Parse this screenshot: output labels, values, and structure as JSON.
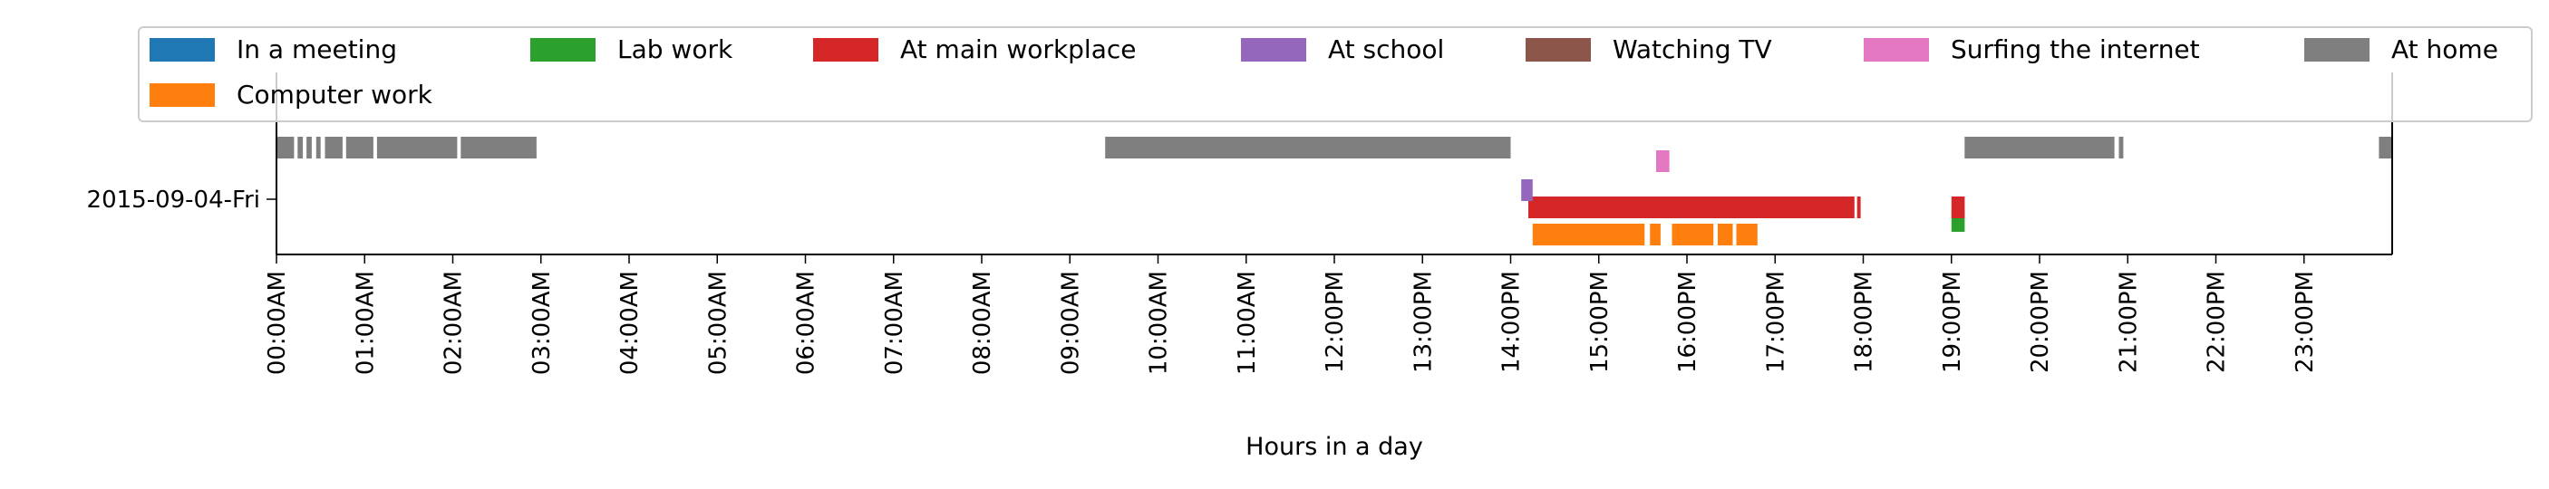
{
  "chart_data": {
    "type": "timeline",
    "title": "",
    "xlabel": "Hours in a day",
    "ylabel": "",
    "day_label": "2015-09-04-Fri",
    "xlim": [
      0,
      24
    ],
    "x_ticks": [
      {
        "hour": 0,
        "label": "00:00AM"
      },
      {
        "hour": 1,
        "label": "01:00AM"
      },
      {
        "hour": 2,
        "label": "02:00AM"
      },
      {
        "hour": 3,
        "label": "03:00AM"
      },
      {
        "hour": 4,
        "label": "04:00AM"
      },
      {
        "hour": 5,
        "label": "05:00AM"
      },
      {
        "hour": 6,
        "label": "06:00AM"
      },
      {
        "hour": 7,
        "label": "07:00AM"
      },
      {
        "hour": 8,
        "label": "08:00AM"
      },
      {
        "hour": 9,
        "label": "09:00AM"
      },
      {
        "hour": 10,
        "label": "10:00AM"
      },
      {
        "hour": 11,
        "label": "11:00AM"
      },
      {
        "hour": 12,
        "label": "12:00PM"
      },
      {
        "hour": 13,
        "label": "13:00PM"
      },
      {
        "hour": 14,
        "label": "14:00PM"
      },
      {
        "hour": 15,
        "label": "15:00PM"
      },
      {
        "hour": 16,
        "label": "16:00PM"
      },
      {
        "hour": 17,
        "label": "17:00PM"
      },
      {
        "hour": 18,
        "label": "18:00PM"
      },
      {
        "hour": 19,
        "label": "19:00PM"
      },
      {
        "hour": 20,
        "label": "20:00PM"
      },
      {
        "hour": 21,
        "label": "21:00PM"
      },
      {
        "hour": 22,
        "label": "22:00PM"
      },
      {
        "hour": 23,
        "label": "23:00PM"
      }
    ],
    "legend_position": "top",
    "legend_columns": 7,
    "series": [
      {
        "name": "In a meeting",
        "color": "#1f77b4",
        "lane": 6,
        "intervals": []
      },
      {
        "name": "Computer work",
        "color": "#ff7f0e",
        "lane": 0,
        "intervals": [
          [
            14.25,
            15.52
          ],
          [
            15.58,
            15.7
          ],
          [
            15.83,
            16.3
          ],
          [
            16.35,
            16.52
          ],
          [
            16.56,
            16.8
          ]
        ]
      },
      {
        "name": "Lab work",
        "color": "#2ca02c",
        "lane": 1,
        "intervals": [
          [
            19.0,
            19.15
          ]
        ]
      },
      {
        "name": "At main workplace",
        "color": "#d62728",
        "lane": 2,
        "intervals": [
          [
            14.2,
            17.9
          ],
          [
            17.93,
            17.97
          ],
          [
            19.0,
            19.15
          ]
        ]
      },
      {
        "name": "At school",
        "color": "#9467bd",
        "lane": 3,
        "intervals": [
          [
            14.12,
            14.25
          ]
        ]
      },
      {
        "name": "Watching TV",
        "color": "#8c564b",
        "lane": 4,
        "intervals": []
      },
      {
        "name": "Surfing the internet",
        "color": "#e377c2",
        "lane": 4,
        "intervals": [
          [
            15.65,
            15.8
          ]
        ]
      },
      {
        "name": "At home",
        "color": "#7f7f7f",
        "lane": 5,
        "intervals": [
          [
            0.0,
            0.2
          ],
          [
            0.24,
            0.3
          ],
          [
            0.34,
            0.4
          ],
          [
            0.45,
            0.5
          ],
          [
            0.55,
            0.75
          ],
          [
            0.79,
            1.1
          ],
          [
            1.14,
            2.05
          ],
          [
            2.09,
            2.95
          ],
          [
            9.4,
            14.0
          ],
          [
            19.15,
            20.85
          ],
          [
            20.9,
            20.95
          ],
          [
            23.85,
            24.0
          ]
        ]
      }
    ]
  }
}
